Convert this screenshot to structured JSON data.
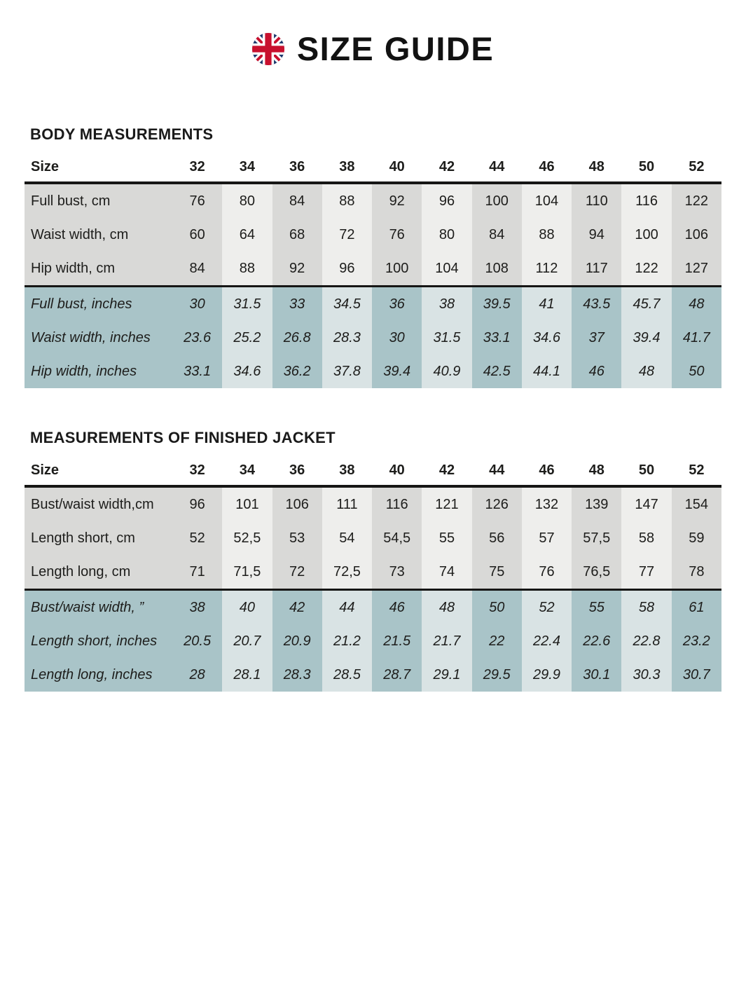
{
  "page": {
    "title": "SIZE GUIDE",
    "background": "#ffffff"
  },
  "colors": {
    "grey_dark": "#d9d9d7",
    "grey_light": "#eeeeec",
    "blue_dark": "#a9c4c8",
    "blue_light": "#d9e3e4",
    "rule_black": "#161615",
    "text": "#1d1d1b",
    "flag_navy": "#1e3a6e",
    "flag_red": "#c8102e"
  },
  "tables": [
    {
      "heading": "BODY MEASUREMENTS",
      "size_label": "Size",
      "sizes": [
        "32",
        "34",
        "36",
        "38",
        "40",
        "42",
        "44",
        "46",
        "48",
        "50",
        "52"
      ],
      "cm_rows": [
        {
          "label": "Full bust, cm",
          "values": [
            "76",
            "80",
            "84",
            "88",
            "92",
            "96",
            "100",
            "104",
            "110",
            "116",
            "122"
          ]
        },
        {
          "label": "Waist width, cm",
          "values": [
            "60",
            "64",
            "68",
            "72",
            "76",
            "80",
            "84",
            "88",
            "94",
            "100",
            "106"
          ]
        },
        {
          "label": "Hip width, cm",
          "values": [
            "84",
            "88",
            "92",
            "96",
            "100",
            "104",
            "108",
            "112",
            "117",
            "122",
            "127"
          ]
        }
      ],
      "inch_rows": [
        {
          "label": "Full bust, inches",
          "values": [
            "30",
            "31.5",
            "33",
            "34.5",
            "36",
            "38",
            "39.5",
            "41",
            "43.5",
            "45.7",
            "48"
          ]
        },
        {
          "label": "Waist width, inches",
          "values": [
            "23.6",
            "25.2",
            "26.8",
            "28.3",
            "30",
            "31.5",
            "33.1",
            "34.6",
            "37",
            "39.4",
            "41.7"
          ]
        },
        {
          "label": "Hip width, inches",
          "values": [
            "33.1",
            "34.6",
            "36.2",
            "37.8",
            "39.4",
            "40.9",
            "42.5",
            "44.1",
            "46",
            "48",
            "50"
          ]
        }
      ]
    },
    {
      "heading": "MEASUREMENTS OF FINISHED JACKET",
      "size_label": "Size",
      "sizes": [
        "32",
        "34",
        "36",
        "38",
        "40",
        "42",
        "44",
        "46",
        "48",
        "50",
        "52"
      ],
      "cm_rows": [
        {
          "label": "Bust/waist width,cm",
          "values": [
            "96",
            "101",
            "106",
            "111",
            "116",
            "121",
            "126",
            "132",
            "139",
            "147",
            "154"
          ]
        },
        {
          "label": "Length short, cm",
          "values": [
            "52",
            "52,5",
            "53",
            "54",
            "54,5",
            "55",
            "56",
            "57",
            "57,5",
            "58",
            "59"
          ]
        },
        {
          "label": "Length long, cm",
          "values": [
            "71",
            "71,5",
            "72",
            "72,5",
            "73",
            "74",
            "75",
            "76",
            "76,5",
            "77",
            "78"
          ]
        }
      ],
      "inch_rows": [
        {
          "label": "Bust/waist width, ”",
          "values": [
            "38",
            "40",
            "42",
            "44",
            "46",
            "48",
            "50",
            "52",
            "55",
            "58",
            "61"
          ]
        },
        {
          "label": "Length short, inches",
          "values": [
            "20.5",
            "20.7",
            "20.9",
            "21.2",
            "21.5",
            "21.7",
            "22",
            "22.4",
            "22.6",
            "22.8",
            "23.2"
          ]
        },
        {
          "label": "Length long, inches",
          "values": [
            "28",
            "28.1",
            "28.3",
            "28.5",
            "28.7",
            "29.1",
            "29.5",
            "29.9",
            "30.1",
            "30.3",
            "30.7"
          ]
        }
      ]
    }
  ]
}
